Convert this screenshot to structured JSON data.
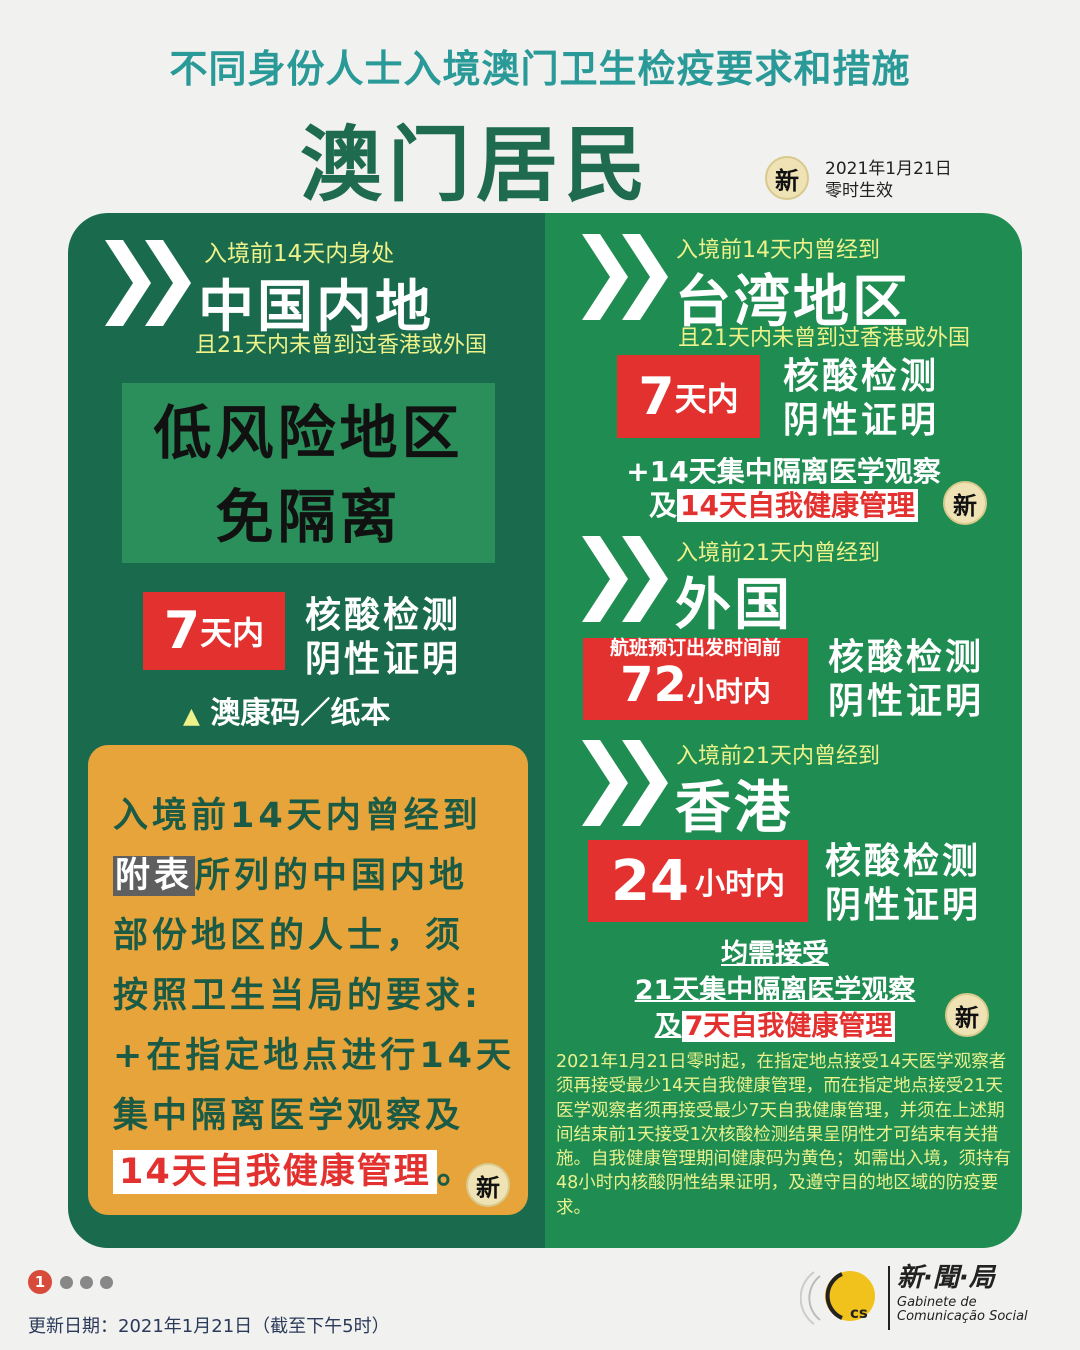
{
  "header": {
    "title": "不同身份人士入境澳门卫生检疫要求和措施",
    "subtitle": "澳门居民",
    "new_badge": "新",
    "effective_date": "2021年1月21日",
    "effective_time": "零时生效"
  },
  "mainland": {
    "pre": "入境前14天内身处",
    "region": "中国内地",
    "condition": "且21天内未曾到过香港或外国",
    "low_risk_line1": "低风险地区",
    "low_risk_line2": "免隔离",
    "test_num": "7",
    "test_unit": "天内",
    "req1": "核酸检测",
    "req2": "阴性证明",
    "code_note": "澳康码／纸本"
  },
  "listed_areas": {
    "line1": "入境前14天内曾经到",
    "highlight": "附表",
    "line2_rest": "所列的中国内地",
    "line3": "部份地区的人士，须",
    "line4": "按照卫生当局的要求:",
    "line5": "+在指定地点进行14天",
    "line6": "集中隔离医学观察及",
    "line7_highlight": "14天自我健康管理",
    "line7_end": "。",
    "new_badge": "新"
  },
  "taiwan": {
    "pre": "入境前14天内曾经到",
    "region": "台湾地区",
    "condition": "且21天内未曾到过香港或外国",
    "test_num": "7",
    "test_unit": "天内",
    "req1": "核酸检测",
    "req2": "阴性证明",
    "extra1": "+14天集中隔离医学观察",
    "extra2_prefix": "及",
    "extra2_highlight": "14天自我健康管理",
    "new_badge": "新"
  },
  "foreign": {
    "pre": "入境前21天内曾经到",
    "region": "外国",
    "test_note": "航班预订出发时间前",
    "test_num": "72",
    "test_unit": "小时内",
    "req1": "核酸检测",
    "req2": "阴性证明"
  },
  "hongkong": {
    "pre": "入境前21天内曾经到",
    "region": "香港",
    "test_num": "24",
    "test_unit": "小时内",
    "req1": "核酸检测",
    "req2": "阴性证明",
    "must1": "均需接受",
    "must2": "21天集中隔离医学观察",
    "must3_prefix": "及",
    "must3_highlight": "7天自我健康管理",
    "new_badge": "新"
  },
  "notice": "2021年1月21日零时起，在指定地点接受14天医学观察者须再接受最少14天自我健康管理，而在指定地点接受21天医学观察者须再接受最少7天自我健康管理，并须在上述期间结束前1天接受1次核酸检测结果呈阴性才可结束有关措施。自我健康管理期间健康码为黄色；如需出入境，须持有48小时内核酸阴性结果证明，及遵守目的地区域的防疫要求。",
  "footer": {
    "page_current": "1",
    "update": "更新日期：2021年1月21日（截至下午5时）",
    "logo_cn": "新·聞·局",
    "logo_pt1": "Gabinete de",
    "logo_pt2": "Comunicação Social",
    "logo_mark": "GCS"
  },
  "colors": {
    "left_panel": "#1a6b4e",
    "right_panel": "#1f8c52",
    "orange": "#e6a43a",
    "red": "#e2312f",
    "title": "#2a9a98"
  }
}
